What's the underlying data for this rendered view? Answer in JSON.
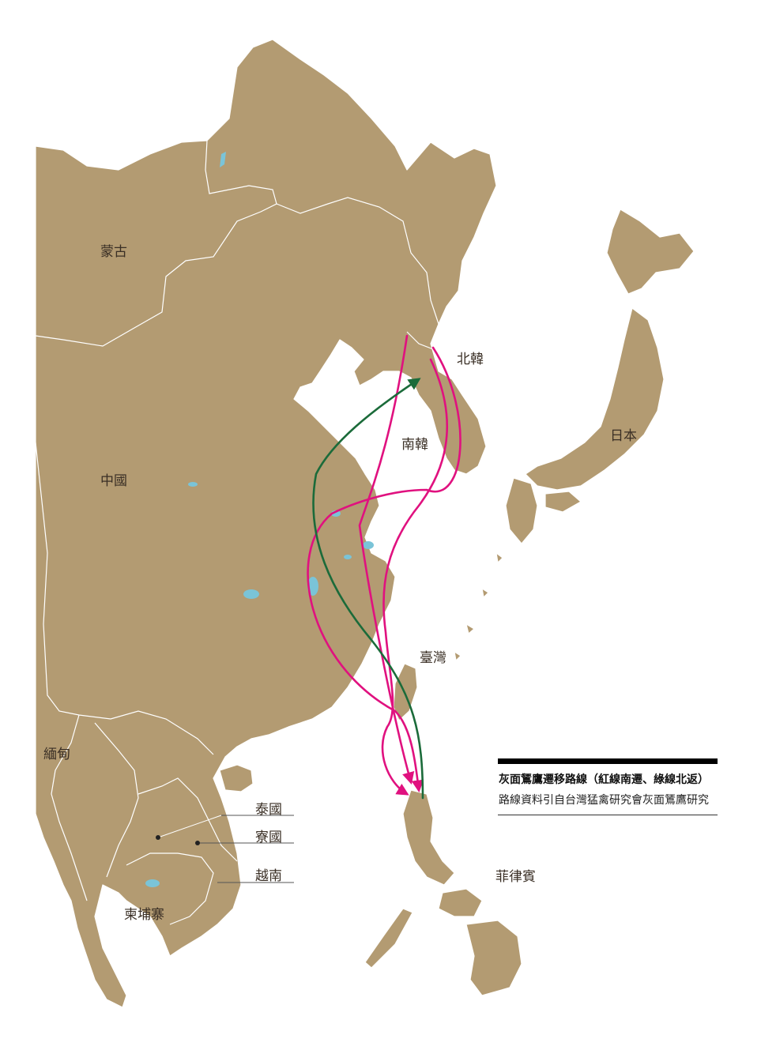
{
  "colors": {
    "land": "#b39b72",
    "water": "#ffffff",
    "lakes": "#7ac4d8",
    "route_south": "#e0117f",
    "route_north": "#1b6b3a",
    "label_text": "#3a2f25"
  },
  "labels": {
    "mongolia": "蒙古",
    "china": "中國",
    "north_korea": "北韓",
    "south_korea": "南韓",
    "japan": "日本",
    "taiwan": "臺灣",
    "myanmar": "緬甸",
    "thailand": "泰國",
    "laos": "寮國",
    "vietnam": "越南",
    "cambodia": "柬埔寨",
    "philippines": "菲律賓"
  },
  "legend": {
    "title": "灰面鵟鷹遷移路線（紅線南遷、綠線北返）",
    "source": "路線資料引自台灣猛禽研究會灰面鵟鷹研究"
  }
}
